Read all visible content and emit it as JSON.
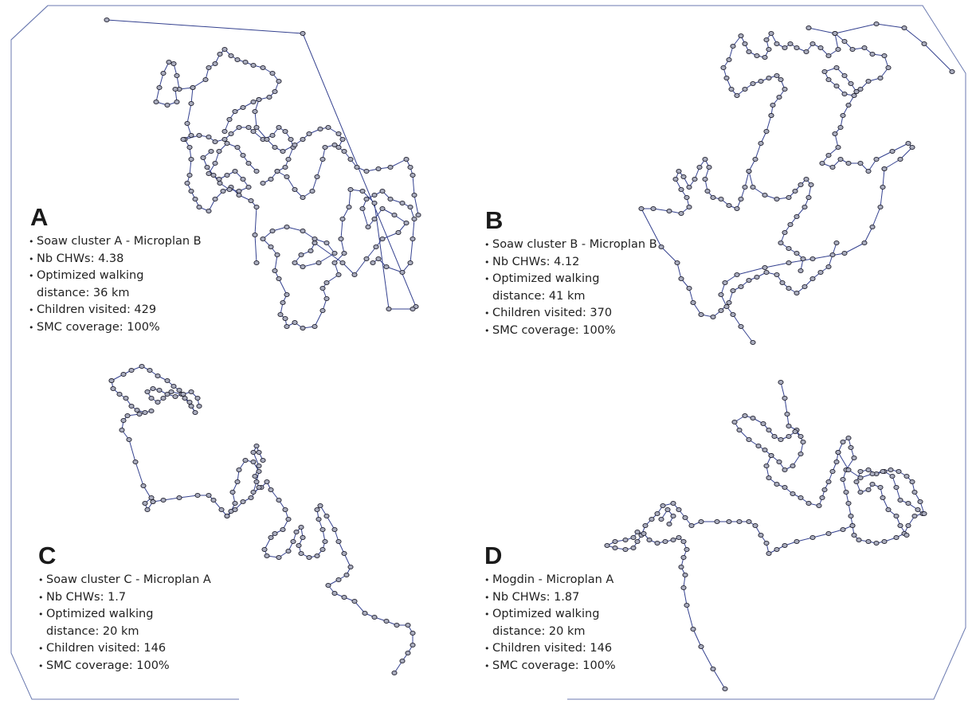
{
  "colors": {
    "route": "#34418f",
    "node_fill": "#a9acbd",
    "node_stroke": "#1c1c2a",
    "frame": "#6b7ab0"
  },
  "panels": [
    {
      "letter": "A",
      "items": [
        "Soaw cluster A - Microplan B",
        "Nb CHWs: 4.38",
        "Optimized walking distance: 36 km",
        "Children visited: 429",
        "SMC coverage: 100%"
      ]
    },
    {
      "letter": "B",
      "items": [
        "Soaw cluster B - Microplan B",
        "Nb CHWs: 4.12",
        "Optimized walking distance: 41 km",
        "Children visited: 370",
        "SMC coverage: 100%"
      ]
    },
    {
      "letter": "C",
      "items": [
        "Soaw cluster C - Microplan A",
        "Nb CHWs: 1.7",
        "Optimized walking distance: 20 km",
        "Children visited: 146",
        "SMC coverage: 100%"
      ]
    },
    {
      "letter": "D",
      "items": [
        "Mogdin - Microplan A",
        "Nb CHWs: 1.87",
        "Optimized walking distance: 20 km",
        "Children visited: 146",
        "SMC coverage: 100%"
      ]
    }
  ]
}
